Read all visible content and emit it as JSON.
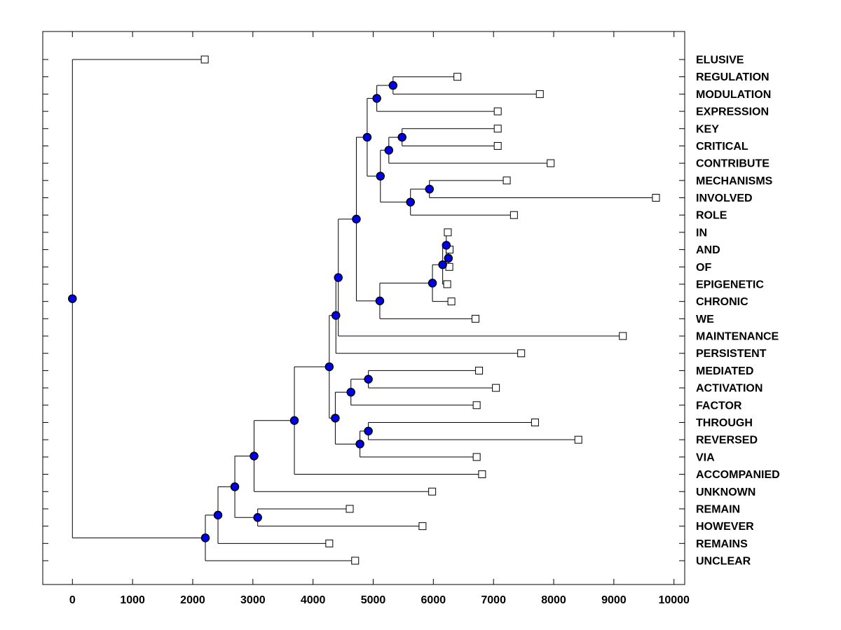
{
  "figure": {
    "background": "#FFFFFF",
    "line_color": "#000000",
    "axis_color": "#000000",
    "branch_node_marker": {
      "shape": "circle",
      "fill": "#0000F0",
      "edge": "#000000"
    },
    "leaf_marker": {
      "shape": "square",
      "fill": "#FFFFFF",
      "edge": "#000000"
    }
  },
  "chart_data": {
    "type": "dendrogram",
    "orientation": "root-left-leaves-right",
    "title": "",
    "xlabel": "",
    "ylabel": "",
    "grid": false,
    "x_ticks": [
      0,
      1000,
      2000,
      3000,
      4000,
      5000,
      6000,
      7000,
      8000,
      9000,
      10000
    ],
    "xlim": [
      -500,
      10180
    ],
    "leaves": [
      {
        "label": "ELUSIVE",
        "distance": 2200
      },
      {
        "label": "REGULATION",
        "distance": 6400
      },
      {
        "label": "MODULATION",
        "distance": 7770
      },
      {
        "label": "EXPRESSION",
        "distance": 7070
      },
      {
        "label": "KEY",
        "distance": 7070
      },
      {
        "label": "CRITICAL",
        "distance": 7070
      },
      {
        "label": "CONTRIBUTE",
        "distance": 7950
      },
      {
        "label": "MECHANISMS",
        "distance": 7220
      },
      {
        "label": "INVOLVED",
        "distance": 9700
      },
      {
        "label": "ROLE",
        "distance": 7340
      },
      {
        "label": "IN",
        "distance": 6240
      },
      {
        "label": "AND",
        "distance": 6270
      },
      {
        "label": "OF",
        "distance": 6265
      },
      {
        "label": "EPIGENETIC",
        "distance": 6230
      },
      {
        "label": "CHRONIC",
        "distance": 6300
      },
      {
        "label": "WE",
        "distance": 6700
      },
      {
        "label": "MAINTENANCE",
        "distance": 9150
      },
      {
        "label": "PERSISTENT",
        "distance": 7460
      },
      {
        "label": "MEDIATED",
        "distance": 6760
      },
      {
        "label": "ACTIVATION",
        "distance": 7040
      },
      {
        "label": "FACTOR",
        "distance": 6720
      },
      {
        "label": "THROUGH",
        "distance": 7690
      },
      {
        "label": "REVERSED",
        "distance": 8410
      },
      {
        "label": "VIA",
        "distance": 6720
      },
      {
        "label": "ACCOMPANIED",
        "distance": 6810
      },
      {
        "label": "UNKNOWN",
        "distance": 5980
      },
      {
        "label": "REMAIN",
        "distance": 4610
      },
      {
        "label": "HOWEVER",
        "distance": 5820
      },
      {
        "label": "REMAINS",
        "distance": 4270
      },
      {
        "label": "UNCLEAR",
        "distance": 4700
      }
    ],
    "tree": {
      "d": 0,
      "children": [
        {
          "label": "ELUSIVE",
          "d": 2200
        },
        {
          "d": 2210,
          "children": [
            {
              "d": 2420,
              "children": [
                {
                  "d": 2700,
                  "children": [
                    {
                      "d": 3020,
                      "children": [
                        {
                          "d": 3690,
                          "children": [
                            {
                              "d": 4270,
                              "children": [
                                {
                                  "d": 4380,
                                  "children": [
                                    {
                                      "d": 4420,
                                      "children": [
                                        {
                                          "d": 4720,
                                          "children": [
                                            {
                                              "d": 4900,
                                              "children": [
                                                {
                                                  "d": 5060,
                                                  "children": [
                                                    {
                                                      "d": 5330,
                                                      "children": [
                                                        {
                                                          "label": "REGULATION",
                                                          "d": 6400
                                                        },
                                                        {
                                                          "label": "MODULATION",
                                                          "d": 7770
                                                        }
                                                      ]
                                                    },
                                                    {
                                                      "label": "EXPRESSION",
                                                      "d": 7070
                                                    }
                                                  ]
                                                },
                                                {
                                                  "d": 5120,
                                                  "children": [
                                                    {
                                                      "d": 5260,
                                                      "children": [
                                                        {
                                                          "d": 5480,
                                                          "children": [
                                                            {
                                                              "label": "KEY",
                                                              "d": 7070
                                                            },
                                                            {
                                                              "label": "CRITICAL",
                                                              "d": 7070
                                                            }
                                                          ]
                                                        },
                                                        {
                                                          "label": "CONTRIBUTE",
                                                          "d": 7950
                                                        }
                                                      ]
                                                    },
                                                    {
                                                      "d": 5620,
                                                      "children": [
                                                        {
                                                          "d": 5935,
                                                          "children": [
                                                            {
                                                              "label": "MECHANISMS",
                                                              "d": 7220
                                                            },
                                                            {
                                                              "label": "INVOLVED",
                                                              "d": 9700
                                                            }
                                                          ]
                                                        },
                                                        {
                                                          "label": "ROLE",
                                                          "d": 7340
                                                        }
                                                      ]
                                                    }
                                                  ]
                                                }
                                              ]
                                            },
                                            {
                                              "d": 5110,
                                              "children": [
                                                {
                                                  "d": 5985,
                                                  "children": [
                                                    {
                                                      "d": 6155,
                                                      "children": [
                                                        {
                                                          "d": 6215,
                                                          "children": [
                                                            {
                                                              "label": "IN",
                                                              "d": 6240
                                                            },
                                                            {
                                                              "d": 6250,
                                                              "children": [
                                                                {
                                                                  "label": "AND",
                                                                  "d": 6270
                                                                },
                                                                {
                                                                  "label": "OF",
                                                                  "d": 6265
                                                                }
                                                              ]
                                                            }
                                                          ]
                                                        },
                                                        {
                                                          "label": "EPIGENETIC",
                                                          "d": 6230
                                                        }
                                                      ]
                                                    },
                                                    {
                                                      "label": "CHRONIC",
                                                      "d": 6300
                                                    }
                                                  ]
                                                },
                                                {
                                                  "label": "WE",
                                                  "d": 6700
                                                }
                                              ]
                                            }
                                          ]
                                        },
                                        {
                                          "label": "MAINTENANCE",
                                          "d": 9150
                                        }
                                      ]
                                    },
                                    {
                                      "label": "PERSISTENT",
                                      "d": 7460
                                    }
                                  ]
                                },
                                {
                                  "d": 4370,
                                  "children": [
                                    {
                                      "d": 4630,
                                      "children": [
                                        {
                                          "d": 4920,
                                          "children": [
                                            {
                                              "label": "MEDIATED",
                                              "d": 6760
                                            },
                                            {
                                              "label": "ACTIVATION",
                                              "d": 7040
                                            }
                                          ]
                                        },
                                        {
                                          "label": "FACTOR",
                                          "d": 6720
                                        }
                                      ]
                                    },
                                    {
                                      "d": 4780,
                                      "children": [
                                        {
                                          "d": 4920,
                                          "children": [
                                            {
                                              "label": "THROUGH",
                                              "d": 7690
                                            },
                                            {
                                              "label": "REVERSED",
                                              "d": 8410
                                            }
                                          ]
                                        },
                                        {
                                          "label": "VIA",
                                          "d": 6720
                                        }
                                      ]
                                    }
                                  ]
                                }
                              ]
                            },
                            {
                              "label": "ACCOMPANIED",
                              "d": 6810
                            }
                          ]
                        },
                        {
                          "label": "UNKNOWN",
                          "d": 5980
                        }
                      ]
                    },
                    {
                      "d": 3080,
                      "children": [
                        {
                          "label": "REMAIN",
                          "d": 4610
                        },
                        {
                          "label": "HOWEVER",
                          "d": 5820
                        }
                      ]
                    }
                  ]
                },
                {
                  "label": "REMAINS",
                  "d": 4270
                }
              ]
            },
            {
              "label": "UNCLEAR",
              "d": 4700
            }
          ]
        }
      ]
    }
  }
}
